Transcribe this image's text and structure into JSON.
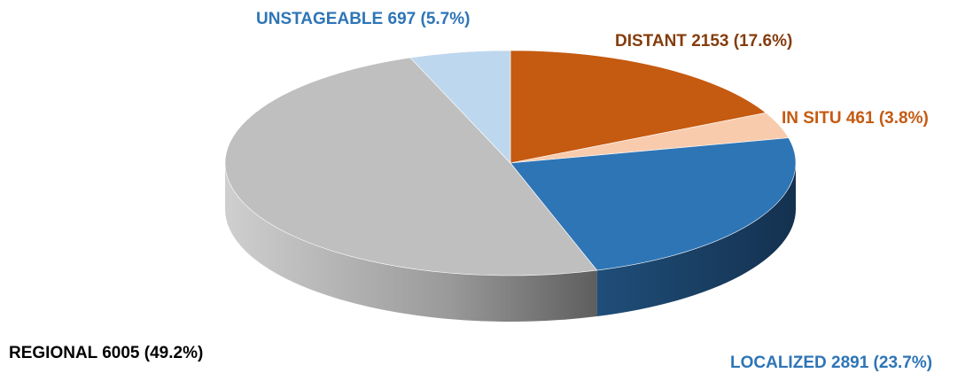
{
  "chart_data": {
    "type": "pie",
    "style": "3d",
    "start_angle_deg": 0,
    "direction": "clockwise",
    "slices": [
      {
        "label": "UNSTAGEABLE",
        "value": 697,
        "percent": "5.7%",
        "color": "#bdd7ee",
        "label_color": "#2e75b6"
      },
      {
        "label": "DISTANT",
        "value": 2153,
        "percent": "17.6%",
        "color": "#c55a11",
        "label_color": "#843c0c"
      },
      {
        "label": "IN SITU",
        "value": 461,
        "percent": "3.8%",
        "color": "#f8cbad",
        "label_color": "#c55a11"
      },
      {
        "label": "LOCALIZED",
        "value": 2891,
        "percent": "23.7%",
        "color": "#2e75b6",
        "label_color": "#2e75b6"
      },
      {
        "label": "REGIONAL",
        "value": 6005,
        "percent": "49.2%",
        "color": "#bfbfbf",
        "label_color": "#000000"
      }
    ],
    "plot_order": [
      1,
      2,
      3,
      4,
      0
    ]
  }
}
